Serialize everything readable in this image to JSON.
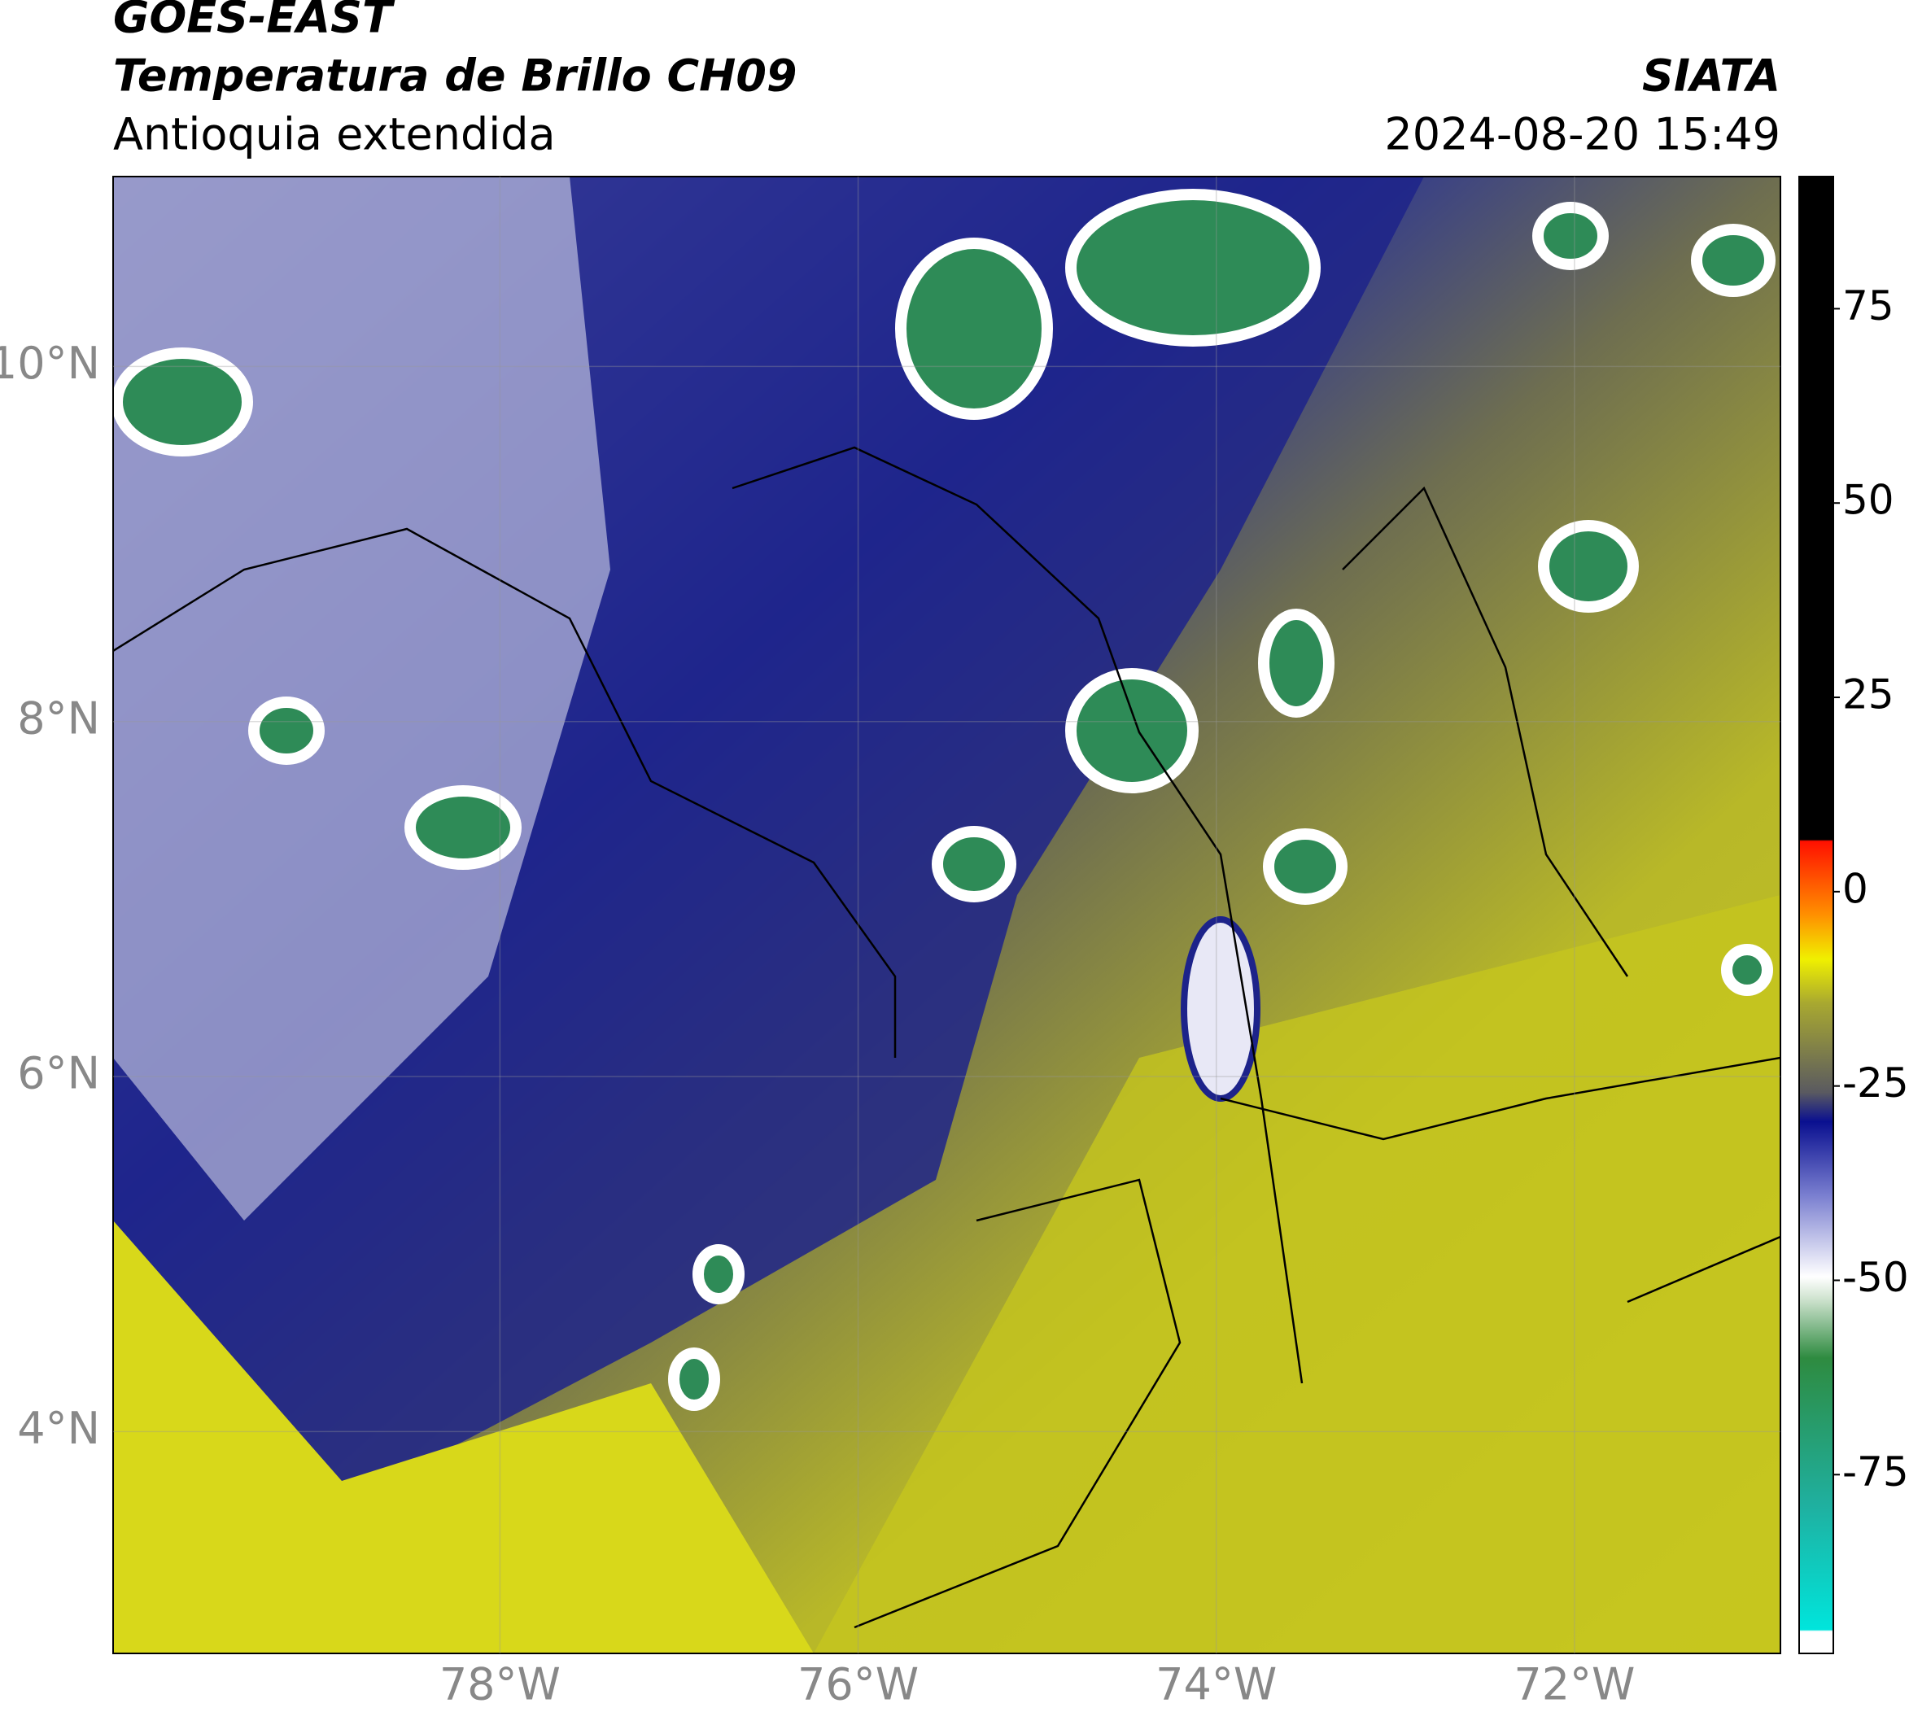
{
  "header": {
    "title": "GOES-EAST",
    "subtitle": "Temperatura de Brillo CH09",
    "region": "Antioquia extendida",
    "source": "SIATA",
    "datetime": "2024-08-20 15:49"
  },
  "map": {
    "xlim": [
      -80.16,
      -70.85
    ],
    "ylim": [
      2.75,
      11.07
    ],
    "xticks": [
      {
        "value": -78,
        "label": "78°W"
      },
      {
        "value": -76,
        "label": "76°W"
      },
      {
        "value": -74,
        "label": "74°W"
      },
      {
        "value": -72,
        "label": "72°W"
      }
    ],
    "yticks": [
      {
        "value": 4,
        "label": "4°N"
      },
      {
        "value": 6,
        "label": "6°N"
      },
      {
        "value": 8,
        "label": "8°N"
      },
      {
        "value": 10,
        "label": "10°N"
      }
    ],
    "grid": true
  },
  "colorbar": {
    "lim": [
      -98,
      92
    ],
    "ticks": [
      -75,
      -50,
      -25,
      0,
      25,
      50,
      75
    ]
  }
}
